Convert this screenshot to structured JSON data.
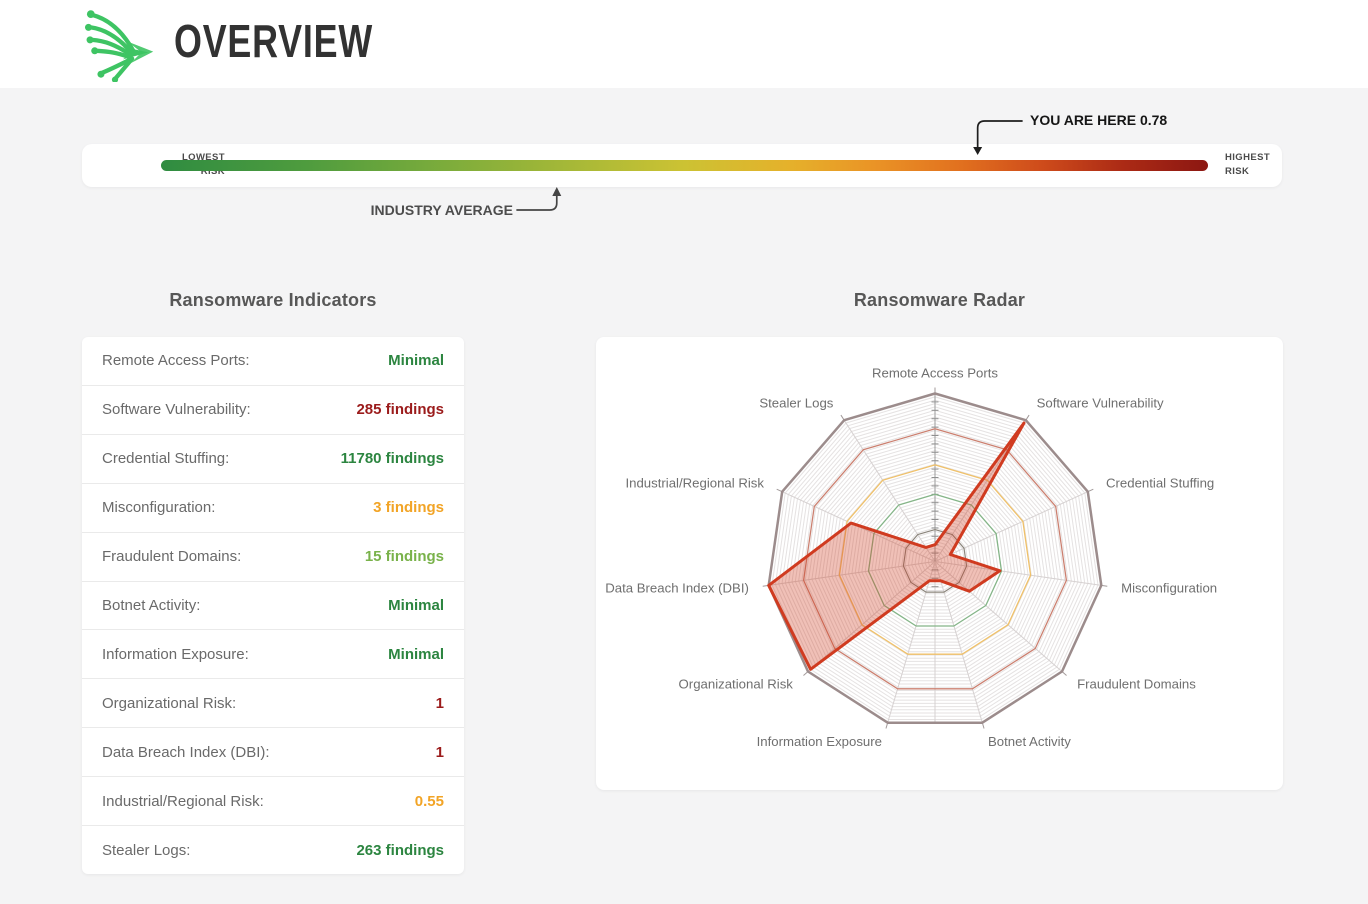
{
  "header": {
    "title": "OVERVIEW",
    "logo_color": "#3ec463"
  },
  "risk_scale": {
    "lowest_label": "LOWEST\nRISK",
    "highest_label": "HIGHEST\nRISK",
    "you_are_here": {
      "label": "YOU ARE HERE",
      "value": "0.78",
      "position": 0.78
    },
    "industry_average": {
      "label": "INDUSTRY AVERAGE",
      "position": 0.378
    },
    "gradient_stops": [
      {
        "color": "#2f8c41",
        "at": "0%"
      },
      {
        "color": "#4f9c3e",
        "at": "14%"
      },
      {
        "color": "#7fad3b",
        "at": "28%"
      },
      {
        "color": "#a9b937",
        "at": "40%"
      },
      {
        "color": "#ccc233",
        "at": "50%"
      },
      {
        "color": "#e5b12b",
        "at": "60%"
      },
      {
        "color": "#ea9426",
        "at": "68%"
      },
      {
        "color": "#e2721f",
        "at": "76%"
      },
      {
        "color": "#cf4c1b",
        "at": "84%"
      },
      {
        "color": "#ab2a15",
        "at": "92%"
      },
      {
        "color": "#8c1712",
        "at": "100%"
      }
    ]
  },
  "indicators": {
    "title": "Ransomware Indicators",
    "rows": [
      {
        "label": "Remote Access Ports:",
        "value": "Minimal",
        "color": "green"
      },
      {
        "label": "Software Vulnerability:",
        "value": "285 findings",
        "color": "darkred"
      },
      {
        "label": "Credential Stuffing:",
        "value": "11780 findings",
        "color": "green"
      },
      {
        "label": "Misconfiguration:",
        "value": "3 findings",
        "color": "amber"
      },
      {
        "label": "Fraudulent Domains:",
        "value": "15 findings",
        "color": "lightgreen"
      },
      {
        "label": "Botnet Activity:",
        "value": "Minimal",
        "color": "green"
      },
      {
        "label": "Information Exposure:",
        "value": "Minimal",
        "color": "green"
      },
      {
        "label": "Organizational Risk:",
        "value": "1",
        "color": "darkred"
      },
      {
        "label": "Data Breach Index (DBI):",
        "value": "1",
        "color": "darkred"
      },
      {
        "label": "Industrial/Regional Risk:",
        "value": "0.55",
        "color": "amber"
      },
      {
        "label": "Stealer Logs:",
        "value": "263 findings",
        "color": "green"
      }
    ]
  },
  "radar": {
    "title": "Ransomware Radar",
    "chart_data": {
      "type": "radar",
      "title": "Ransomware Radar",
      "scale": {
        "min": 0,
        "max": 1
      },
      "axes": [
        {
          "label": "Remote Access Ports",
          "value": 0.1
        },
        {
          "label": "Software Vulnerability",
          "value": 0.98
        },
        {
          "label": "Credential Stuffing",
          "value": 0.1
        },
        {
          "label": "Misconfiguration",
          "value": 0.39
        },
        {
          "label": "Fraudulent Domains",
          "value": 0.27
        },
        {
          "label": "Botnet Activity",
          "value": 0.12
        },
        {
          "label": "Information Exposure",
          "value": 0.12
        },
        {
          "label": "Organizational Risk",
          "value": 0.98
        },
        {
          "label": "Data Breach Index (DBI)",
          "value": 1.0
        },
        {
          "label": "Industrial/Regional Risk",
          "value": 0.55
        },
        {
          "label": "Stealer Logs",
          "value": 0.1
        }
      ],
      "series_color": "#d03b20",
      "series_fill": "rgba(208,59,32,0.32)",
      "rings": [
        {
          "radius": 0.19,
          "color": "#8b857c",
          "width": 1.2
        },
        {
          "radius": 0.4,
          "color": "#85b588",
          "width": 1.3
        },
        {
          "radius": 0.575,
          "color": "#f0c169",
          "width": 1.3
        },
        {
          "radius": 0.79,
          "color": "#cb8070",
          "width": 1.3
        },
        {
          "radius": 1.0,
          "color": "#9c8c8c",
          "width": 2.5
        }
      ],
      "grid": {
        "minor_step": 0.02,
        "minor_color": "rgba(160,150,150,0.28)",
        "spoke_color": "#d6d1d1",
        "value_axis_color": "#9b9b9b",
        "tick_color": "#8f8f8f",
        "legend_position": "none"
      }
    }
  }
}
